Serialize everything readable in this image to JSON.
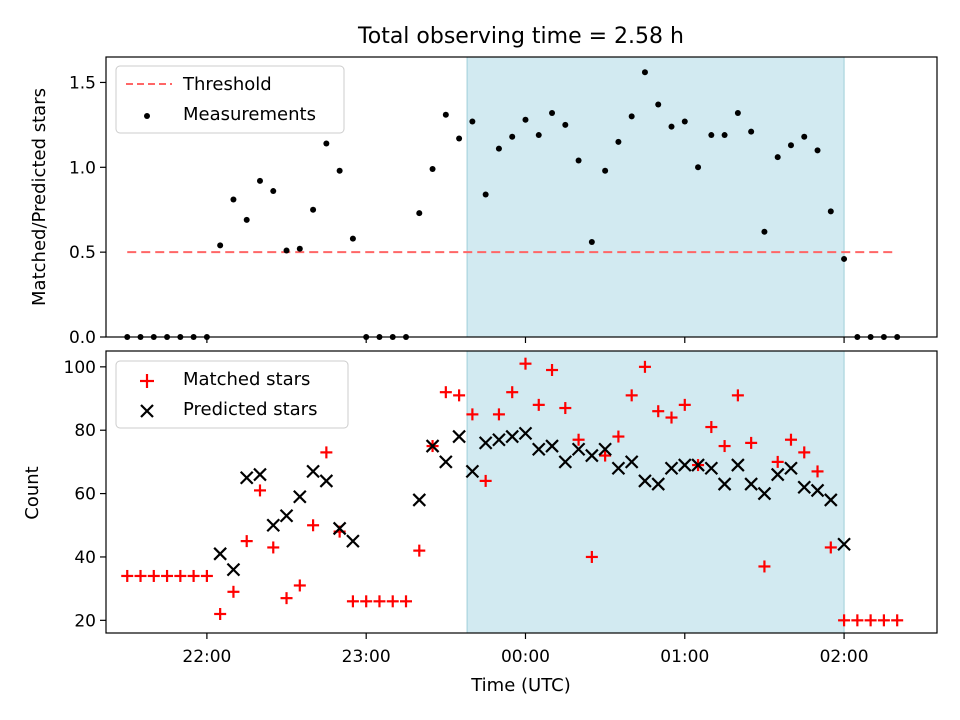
{
  "chart_data": [
    {
      "type": "scatter",
      "title": "Total observing time = 2.58 h",
      "ylabel": "Matched/Predicted stars",
      "xlabel": "",
      "x_unit": "UTC time (HH:MM, after 24:00 = next day)",
      "xlim": [
        "21:22",
        "02:35"
      ],
      "ylim": [
        0,
        1.65
      ],
      "yticks": [
        0.0,
        0.5,
        1.0,
        1.5
      ],
      "ytick_labels": [
        "0.0",
        "0.5",
        "1.0",
        "1.5"
      ],
      "grid": false,
      "legend_position": "top-left",
      "shaded_span": [
        "23:38",
        "02:00"
      ],
      "shaded_color": "#add8e6",
      "series": [
        {
          "name": "Threshold",
          "kind": "line",
          "style": "dashed",
          "color": "#ff6666",
          "x": [
            "21:30",
            "02:20"
          ],
          "y": [
            0.5,
            0.5
          ]
        },
        {
          "name": "Measurements",
          "kind": "scatter",
          "marker": "dot",
          "color": "#000000",
          "x": [
            "21:30",
            "21:35",
            "21:40",
            "21:45",
            "21:50",
            "21:55",
            "22:00",
            "22:05",
            "22:10",
            "22:15",
            "22:20",
            "22:25",
            "22:30",
            "22:35",
            "22:40",
            "22:45",
            "22:50",
            "22:55",
            "23:00",
            "23:05",
            "23:10",
            "23:15",
            "23:20",
            "23:25",
            "23:30",
            "23:35",
            "23:40",
            "23:45",
            "23:50",
            "23:55",
            "24:00",
            "24:05",
            "24:10",
            "24:15",
            "24:20",
            "24:25",
            "24:30",
            "24:35",
            "24:40",
            "24:45",
            "24:50",
            "24:55",
            "25:00",
            "25:05",
            "25:10",
            "25:15",
            "25:20",
            "25:25",
            "25:30",
            "25:35",
            "25:40",
            "25:45",
            "25:50",
            "25:55",
            "26:00",
            "26:05",
            "26:10",
            "26:15",
            "26:20"
          ],
          "y": [
            0,
            0,
            0,
            0,
            0,
            0,
            0,
            0.54,
            0.81,
            0.69,
            0.92,
            0.86,
            0.51,
            0.52,
            0.75,
            1.14,
            0.98,
            0.58,
            0,
            0,
            0,
            0,
            0.73,
            0.99,
            1.31,
            1.17,
            1.27,
            0.84,
            1.11,
            1.18,
            1.28,
            1.19,
            1.32,
            1.25,
            1.04,
            0.56,
            0.98,
            1.15,
            1.3,
            1.56,
            1.37,
            1.24,
            1.27,
            1.0,
            1.19,
            1.19,
            1.32,
            1.21,
            0.62,
            1.06,
            1.13,
            1.18,
            1.1,
            0.74,
            0.46,
            0,
            0,
            0,
            0
          ]
        }
      ]
    },
    {
      "type": "scatter",
      "title": "",
      "ylabel": "Count",
      "xlabel": "Time (UTC)",
      "xlim": [
        "21:22",
        "02:35"
      ],
      "ylim": [
        16,
        105
      ],
      "yticks": [
        20,
        40,
        60,
        80,
        100
      ],
      "ytick_labels": [
        "20",
        "40",
        "60",
        "80",
        "100"
      ],
      "xticks": [
        "22:00",
        "23:00",
        "24:00",
        "25:00",
        "26:00"
      ],
      "xtick_labels": [
        "22:00",
        "23:00",
        "00:00",
        "01:00",
        "02:00"
      ],
      "grid": false,
      "legend_position": "top-left",
      "shaded_span": [
        "23:38",
        "02:00"
      ],
      "shaded_color": "#add8e6",
      "series": [
        {
          "name": "Matched stars",
          "kind": "scatter",
          "marker": "plus",
          "color": "#ff0000",
          "x": [
            "21:30",
            "21:35",
            "21:40",
            "21:45",
            "21:50",
            "21:55",
            "22:00",
            "22:05",
            "22:10",
            "22:15",
            "22:20",
            "22:25",
            "22:30",
            "22:35",
            "22:40",
            "22:45",
            "22:50",
            "22:55",
            "23:00",
            "23:05",
            "23:10",
            "23:15",
            "23:20",
            "23:25",
            "23:30",
            "23:35",
            "23:40",
            "23:45",
            "23:50",
            "23:55",
            "24:00",
            "24:05",
            "24:10",
            "24:15",
            "24:20",
            "24:25",
            "24:30",
            "24:35",
            "24:40",
            "24:45",
            "24:50",
            "24:55",
            "25:00",
            "25:05",
            "25:10",
            "25:15",
            "25:20",
            "25:25",
            "25:30",
            "25:35",
            "25:40",
            "25:45",
            "25:50",
            "25:55",
            "26:00",
            "26:05",
            "26:10",
            "26:15",
            "26:20"
          ],
          "y": [
            34,
            34,
            34,
            34,
            34,
            34,
            34,
            22,
            29,
            45,
            61,
            43,
            27,
            31,
            50,
            73,
            48,
            26,
            26,
            26,
            26,
            26,
            42,
            75,
            92,
            91,
            85,
            64,
            85,
            92,
            101,
            88,
            99,
            87,
            77,
            40,
            72,
            78,
            91,
            100,
            86,
            84,
            88,
            69,
            81,
            75,
            91,
            76,
            37,
            70,
            77,
            73,
            67,
            43,
            20,
            20,
            20,
            20,
            20
          ],
          "note": ""
        },
        {
          "name": "Predicted stars",
          "kind": "scatter",
          "marker": "x",
          "color": "#000000",
          "x": [
            "22:05",
            "22:10",
            "22:15",
            "22:20",
            "22:25",
            "22:30",
            "22:35",
            "22:40",
            "22:45",
            "22:50",
            "22:55",
            "23:20",
            "23:25",
            "23:30",
            "23:35",
            "23:40",
            "23:45",
            "23:50",
            "23:55",
            "24:00",
            "24:05",
            "24:10",
            "24:15",
            "24:20",
            "24:25",
            "24:30",
            "24:35",
            "24:40",
            "24:45",
            "24:50",
            "24:55",
            "25:00",
            "25:05",
            "25:10",
            "25:15",
            "25:20",
            "25:25",
            "25:30",
            "25:35",
            "25:40",
            "25:45",
            "25:50",
            "25:55",
            "26:00"
          ],
          "y": [
            41,
            36,
            65,
            66,
            50,
            53,
            59,
            67,
            64,
            49,
            45,
            58,
            75,
            70,
            78,
            67,
            76,
            77,
            78,
            79,
            74,
            75,
            70,
            74,
            72,
            74,
            68,
            70,
            64,
            63,
            68,
            69,
            69,
            68,
            63,
            69,
            63,
            60,
            66,
            68,
            62,
            61,
            58,
            44
          ]
        }
      ]
    }
  ]
}
